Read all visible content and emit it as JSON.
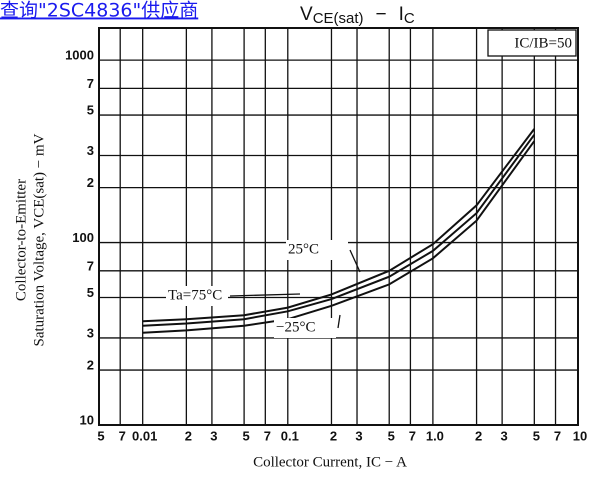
{
  "link": "查询\"2SC4836\"供应商",
  "chart_data": {
    "type": "line",
    "title": {
      "main": "V",
      "sub": "CE(sat)",
      "dash": "−",
      "main2": "I",
      "sub2": "C"
    },
    "annotation": "IC/IB=50",
    "y_label": [
      "Collector-to-Emitter",
      "Saturation Voltage, VCE(sat) − mV"
    ],
    "x_label": "Collector Current, IC − A",
    "log_x": true,
    "log_y": true,
    "grid": true,
    "xlim": [
      0.005,
      10
    ],
    "ylim": [
      10,
      1500
    ],
    "xticks": [
      {
        "value": 0.005,
        "label": "5"
      },
      {
        "value": 0.007,
        "label": "7"
      },
      0.01,
      {
        "value": 0.02,
        "label": "2"
      },
      {
        "value": 0.03,
        "label": "3"
      },
      {
        "value": 0.05,
        "label": "5"
      },
      {
        "value": 0.07,
        "label": "7"
      },
      0.1,
      {
        "value": 0.2,
        "label": "2"
      },
      {
        "value": 0.3,
        "label": "3"
      },
      {
        "value": 0.5,
        "label": "5"
      },
      {
        "value": 0.7,
        "label": "7"
      },
      {
        "value": 1,
        "label": "1.0"
      },
      {
        "value": 2,
        "label": "2"
      },
      {
        "value": 3,
        "label": "3"
      },
      {
        "value": 5,
        "label": "5"
      },
      {
        "value": 7,
        "label": "7"
      },
      10
    ],
    "yticks": [
      10,
      {
        "value": 20,
        "label": "2"
      },
      {
        "value": 30,
        "label": "3"
      },
      {
        "value": 50,
        "label": "5"
      },
      {
        "value": 70,
        "label": "7"
      },
      100,
      {
        "value": 200,
        "label": "2"
      },
      {
        "value": 300,
        "label": "3"
      },
      {
        "value": 500,
        "label": "5"
      },
      {
        "value": 700,
        "label": "7"
      },
      1000
    ],
    "x": [
      0.01,
      0.02,
      0.05,
      0.1,
      0.2,
      0.5,
      1,
      2,
      5
    ],
    "series": [
      {
        "name": "Ta=75°C",
        "color": "#111111",
        "values": [
          37,
          38,
          40,
          44,
          52,
          70,
          98,
          160,
          420
        ]
      },
      {
        "name": "25°C",
        "color": "#111111",
        "values": [
          35,
          36,
          38,
          42,
          49,
          65,
          90,
          145,
          390
        ]
      },
      {
        "name": "−25°C",
        "color": "#111111",
        "values": [
          32,
          33,
          35,
          38,
          45,
          59,
          82,
          132,
          360
        ]
      }
    ]
  }
}
